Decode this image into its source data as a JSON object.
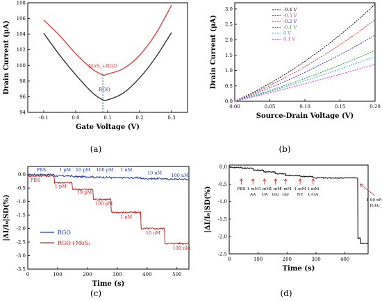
{
  "chart_data": [
    {
      "panel": "(a)",
      "type": "line",
      "xlabel": "Gate Voltage (V)",
      "ylabel": "Drain Current (μA)",
      "xlim": [
        -0.15,
        0.35
      ],
      "ylim": [
        94,
        108
      ],
      "xticks": [
        "-0.1",
        "0.0",
        "0.1",
        "0.2",
        "0.3"
      ],
      "yticks": [
        "94",
        "96",
        "98",
        "100",
        "102",
        "104",
        "106",
        "108"
      ],
      "series": [
        {
          "name": "RGO",
          "color": "#333333",
          "x": [
            -0.1,
            -0.05,
            0.0,
            0.05,
            0.08,
            0.1,
            0.15,
            0.2,
            0.25,
            0.3
          ],
          "y": [
            104.1,
            101.3,
            98.8,
            96.6,
            95.7,
            95.6,
            96.5,
            98.4,
            101.0,
            104.2
          ]
        },
        {
          "name": "MoS₂+RGO",
          "color": "#e04040",
          "x": [
            -0.1,
            -0.05,
            0.0,
            0.05,
            0.085,
            0.1,
            0.15,
            0.2,
            0.25,
            0.3
          ],
          "y": [
            105.8,
            103.8,
            101.5,
            99.6,
            98.8,
            98.9,
            99.6,
            101.3,
            104.0,
            107.7
          ]
        }
      ],
      "annotations": [
        {
          "text": "MoS",
          "sub": "2",
          "rest": "+RGO",
          "x": 0.085,
          "y": 99.7,
          "color": "#e04040"
        },
        {
          "text": "RGO",
          "x": 0.09,
          "y": 96.7,
          "color": "#333399"
        }
      ],
      "marker_line": {
        "x": 0.085,
        "color": "#2f5ba8"
      },
      "grid": false,
      "caption": "(a)"
    },
    {
      "panel": "(b)",
      "type": "line",
      "xlabel": "Source-Drain Voltage (V)",
      "ylabel": "Drain Current (μA)",
      "xlim": [
        0.0,
        0.2
      ],
      "ylim": [
        0.0,
        3.2
      ],
      "xticks": [
        "0.00",
        "0.05",
        "0.10",
        "0.15",
        "0.20"
      ],
      "yticks": [
        "0.0",
        "0.5",
        "1.0",
        "1.5",
        "2.0",
        "2.5",
        "3.0"
      ],
      "legend_position": "top-left",
      "series": [
        {
          "name": "-0.4 V",
          "color": "#000000",
          "y_end": 3.15,
          "curve": 0.35
        },
        {
          "name": "-0.3 V",
          "color": "#e03030",
          "y_end": 2.65,
          "curve": 0.3
        },
        {
          "name": "-0.2 V",
          "color": "#3030e0",
          "y_end": 2.15,
          "curve": 0.25
        },
        {
          "name": "-0.1 V",
          "color": "#30a030",
          "y_end": 1.65,
          "curve": 0.2
        },
        {
          "name": "0 V",
          "color": "#30b0e0",
          "y_end": 1.45,
          "curve": 0.15
        },
        {
          "name": "0.1 V",
          "color": "#e030e0",
          "y_end": 1.2,
          "curve": 0.1
        }
      ],
      "grid": false,
      "caption": "(b)"
    },
    {
      "panel": "(c)",
      "type": "line",
      "xlabel": "Time (s)",
      "ylabel": "|ΔI/I₀|SD(%)",
      "xlim": [
        0,
        540
      ],
      "ylim": [
        -3.5,
        0.3
      ],
      "xticks": [
        "0",
        "100",
        "200",
        "300",
        "400",
        "500"
      ],
      "yticks": [
        "0.0",
        "-0.5",
        "-1.0",
        "-1.5",
        "-2.0",
        "-2.5",
        "-3.0",
        "-3.5"
      ],
      "legend_position": "bottom-left",
      "series": [
        {
          "name": "RGO",
          "color": "#1f3aa8",
          "steps": [
            [
              0,
              0.0
            ],
            [
              90,
              -0.05
            ],
            [
              150,
              -0.08
            ],
            [
              220,
              -0.1
            ],
            [
              280,
              -0.12
            ],
            [
              380,
              -0.15
            ],
            [
              460,
              -0.17
            ],
            [
              540,
              -0.2
            ]
          ]
        },
        {
          "name": "RGO+MoS₂",
          "color": "#c82020",
          "steps": [
            [
              0,
              -0.05
            ],
            [
              90,
              -0.3
            ],
            [
              150,
              -0.55
            ],
            [
              220,
              -0.92
            ],
            [
              280,
              -1.4
            ],
            [
              380,
              -2.0
            ],
            [
              460,
              -2.55
            ],
            [
              540,
              -2.55
            ]
          ]
        }
      ],
      "annotations_blue": [
        {
          "text": "PBS",
          "x": 45,
          "y": 0.12
        },
        {
          "text": "1 pM",
          "x": 125,
          "y": 0.12
        },
        {
          "text": "10 pM",
          "x": 185,
          "y": 0.12
        },
        {
          "text": "100 pM",
          "x": 258,
          "y": 0.12
        },
        {
          "text": "1 nM",
          "x": 330,
          "y": 0.12
        },
        {
          "text": "10 nM",
          "x": 425,
          "y": 0.0
        },
        {
          "text": "100 nM",
          "x": 510,
          "y": -0.08
        }
      ],
      "annotations_red": [
        {
          "text": "PBS",
          "x": 25,
          "y": -0.26
        },
        {
          "text": "1 pM",
          "x": 110,
          "y": -0.48
        },
        {
          "text": "10 pM",
          "x": 190,
          "y": -0.72
        },
        {
          "text": "100 pM",
          "x": 255,
          "y": -1.12
        },
        {
          "text": "1 nM",
          "x": 330,
          "y": -1.62
        },
        {
          "text": "10 nM",
          "x": 420,
          "y": -2.22
        },
        {
          "text": "100 nM",
          "x": 515,
          "y": -2.78
        }
      ],
      "grid": false,
      "caption": "(c)"
    },
    {
      "panel": "(d)",
      "type": "line",
      "xlabel": "Time (s)",
      "ylabel": "|ΔI/I₀|SD(%)",
      "xlim": [
        0,
        480
      ],
      "ylim": [
        -2.5,
        0.05
      ],
      "xticks": [
        "0",
        "100",
        "200",
        "300",
        "400"
      ],
      "yticks": [
        "0.0",
        "-0.5",
        "-1.0",
        "-1.5",
        "-2.0",
        "-2.5"
      ],
      "series": [
        {
          "name": "",
          "color": "#222222",
          "steps": [
            [
              0,
              -0.02
            ],
            [
              45,
              -0.04
            ],
            [
              85,
              -0.1
            ],
            [
              120,
              -0.15
            ],
            [
              160,
              -0.2
            ],
            [
              195,
              -0.25
            ],
            [
              245,
              -0.28
            ],
            [
              290,
              -0.32
            ],
            [
              370,
              -0.32
            ],
            [
              440,
              -0.33
            ],
            [
              445,
              -2.05
            ],
            [
              455,
              -2.2
            ],
            [
              480,
              -2.2
            ]
          ]
        }
      ],
      "annotations": [
        {
          "lines": [
            "PBS"
          ],
          "x": 42
        },
        {
          "lines": [
            "1 mM",
            "AA"
          ],
          "x": 82
        },
        {
          "lines": [
            "1 mM",
            "UA"
          ],
          "x": 122
        },
        {
          "lines": [
            "1 mM",
            "Glu"
          ],
          "x": 160
        },
        {
          "lines": [
            "1 mM",
            "Gly"
          ],
          "x": 195
        },
        {
          "lines": [
            "1 mM",
            "NE"
          ],
          "x": 245
        },
        {
          "lines": [
            "1 mM",
            "L-GA"
          ],
          "x": 290
        }
      ],
      "h2o2": {
        "lines": [
          "1 00 nM",
          "H₂O₂"
        ],
        "x": 445,
        "arrow_color": "#d02020"
      },
      "grid": false,
      "caption": "(d)"
    }
  ]
}
